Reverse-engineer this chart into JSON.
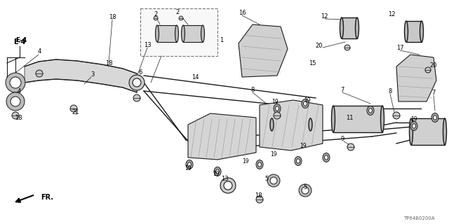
{
  "bg_color": "#ffffff",
  "line_color": "#1a1a1a",
  "catalog_id": "TP64B0200A",
  "fig_width": 6.4,
  "fig_height": 3.2,
  "dpi": 100
}
